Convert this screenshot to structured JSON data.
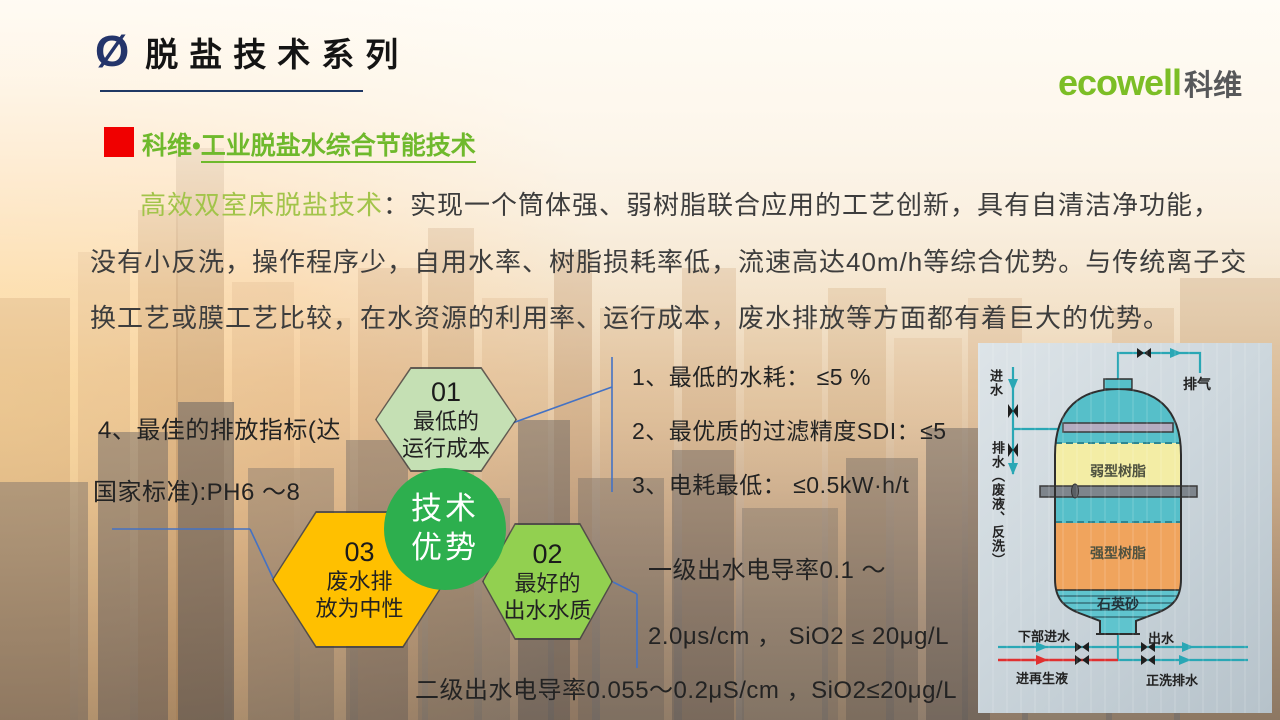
{
  "header": {
    "bullet_symbol": "Ø",
    "title": "脱盐技术系列",
    "logo_ecowell": "ecowell",
    "logo_kewei": "科维"
  },
  "section": {
    "heading_prefix": "科维•",
    "heading_underlined": "工业脱盐水综合节能技术"
  },
  "paragraph": {
    "lead": "高效双室床脱盐技术",
    "line1": "：实现一个筒体强、弱树脂联合应用的工艺创新，具有自清洁净功能，",
    "line2": "没有小反洗，操作程序少，自用水率、树脂损耗率低，流速高达40m/h等综合优势。与传统离子交",
    "line3": "换工艺或膜工艺比较，在水资源的利用率、运行成本，废水排放等方面都有着巨大的优势。"
  },
  "hex_diagram": {
    "center": {
      "line1": "技术",
      "line2": "优势"
    },
    "hex01": {
      "num": "01",
      "line1": "最低的",
      "line2": "运行成本"
    },
    "hex02": {
      "num": "02",
      "line1": "最好的",
      "line2": "出水水质"
    },
    "hex03": {
      "num": "03",
      "line1": "废水排",
      "line2": "放为中性"
    }
  },
  "advantages": {
    "item1": "1、最低的水耗： ≤5 %",
    "item2": "2、最优质的过滤精度SDI：≤5",
    "item3": "3、电耗最低： ≤0.5kW·h/t",
    "item4_line1": "4、最佳的排放指标(达",
    "item4_line2": "国家标准):PH6 ～8",
    "primary_line1": "一级出水电导率0.1 ～",
    "primary_line2": "2.0μs/cm ， SiO2 ≤ 20μg/L",
    "secondary": "二级出水电导率0.055～0.2μS/cm ，SiO2≤20μg/L"
  },
  "vessel_diagram": {
    "inlet": "进水",
    "exhaust": "排气",
    "drain": "排水（废液、反洗）",
    "weak_resin": "弱型树脂",
    "strong_resin": "强型树脂",
    "quartz_sand": "石英砂",
    "bottom_inlet": "下部进水",
    "outlet": "出水",
    "regen_in": "进再生液",
    "rinse_drain": "正洗排水"
  },
  "colors": {
    "accent_green": "#6FB92C",
    "lead_green": "#A2C44A",
    "logo_green": "#7CBE26",
    "red_bullet": "#F00000",
    "hex01_fill": "#C5E0B4",
    "hex02_fill": "#92D050",
    "hex03_fill": "#FFC000",
    "center_circle": "#2DAF4E",
    "connector_blue": "#4472C4"
  }
}
